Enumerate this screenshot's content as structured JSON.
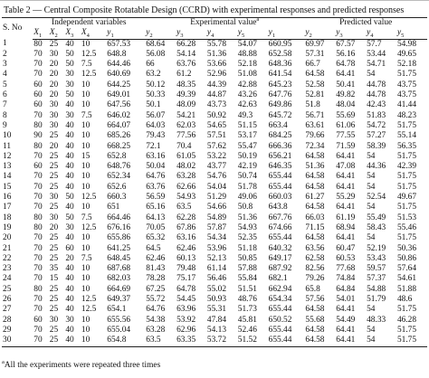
{
  "title": "Table 2 — Central Composite Rotatable Design (CCRD) with experimental responses and predicted responses",
  "header": {
    "sno": "S. No",
    "independent": "Independent variables",
    "experimental": "Experimental value",
    "experimental_mark": "a",
    "predicted": "Predicted value",
    "columns": [
      {
        "base": "X",
        "sub": "1"
      },
      {
        "base": "X",
        "sub": "2"
      },
      {
        "base": "X",
        "sub": "3"
      },
      {
        "base": "X",
        "sub": "4"
      },
      {
        "base": "y",
        "sub": "1"
      },
      {
        "base": "y",
        "sub": "2"
      },
      {
        "base": "y",
        "sub": "3"
      },
      {
        "base": "y",
        "sub": "4"
      },
      {
        "base": "y",
        "sub": "5"
      },
      {
        "base": "y",
        "sub": "1"
      },
      {
        "base": "y",
        "sub": "2"
      },
      {
        "base": "y",
        "sub": "3"
      },
      {
        "base": "y",
        "sub": "4"
      },
      {
        "base": "y",
        "sub": "5"
      }
    ]
  },
  "rows": [
    [
      "1",
      "80",
      "25",
      "40",
      "10",
      "657.53",
      "68.64",
      "66.28",
      "55.78",
      "54.07",
      "660.95",
      "69.97",
      "67.57",
      "57.7",
      "54.98"
    ],
    [
      "2",
      "70",
      "30",
      "50",
      "12.5",
      "648.8",
      "56.08",
      "54.14",
      "51.36",
      "48.88",
      "652.58",
      "57.31",
      "56.16",
      "53.44",
      "49.65"
    ],
    [
      "3",
      "70",
      "20",
      "50",
      "7.5",
      "644.46",
      "66",
      "63.76",
      "53.66",
      "52.18",
      "648.36",
      "66.7",
      "64.78",
      "54.71",
      "52.18"
    ],
    [
      "4",
      "70",
      "20",
      "30",
      "12.5",
      "640.69",
      "63.2",
      "61.2",
      "52.96",
      "51.08",
      "641.54",
      "64.58",
      "64.41",
      "54",
      "51.75"
    ],
    [
      "5",
      "60",
      "20",
      "30",
      "10",
      "644.25",
      "50.12",
      "48.35",
      "44.39",
      "42.88",
      "645.23",
      "52.58",
      "50.41",
      "44.78",
      "43.75"
    ],
    [
      "6",
      "60",
      "20",
      "50",
      "10",
      "649.01",
      "50.33",
      "49.39",
      "44.87",
      "43.26",
      "647.76",
      "52.81",
      "49.82",
      "44.78",
      "43.75"
    ],
    [
      "7",
      "60",
      "30",
      "40",
      "10",
      "647.56",
      "50.1",
      "48.09",
      "43.73",
      "42.63",
      "649.86",
      "51.8",
      "48.04",
      "42.43",
      "41.44"
    ],
    [
      "8",
      "70",
      "30",
      "30",
      "7.5",
      "646.02",
      "56.07",
      "54.21",
      "50.92",
      "49.3",
      "645.72",
      "56.71",
      "55.69",
      "51.83",
      "48.23"
    ],
    [
      "9",
      "80",
      "30",
      "40",
      "10",
      "664.07",
      "64.03",
      "62.03",
      "54.65",
      "51.15",
      "663.4",
      "63.61",
      "61.06",
      "54.72",
      "51.75"
    ],
    [
      "10",
      "90",
      "25",
      "40",
      "10",
      "685.26",
      "79.43",
      "77.56",
      "57.51",
      "53.17",
      "684.25",
      "79.66",
      "77.55",
      "57.27",
      "55.14"
    ],
    [
      "11",
      "80",
      "20",
      "40",
      "10",
      "668.25",
      "72.1",
      "70.4",
      "57.62",
      "55.47",
      "666.36",
      "72.34",
      "71.59",
      "58.39",
      "56.35"
    ],
    [
      "12",
      "70",
      "25",
      "40",
      "15",
      "652.8",
      "63.16",
      "61.05",
      "53.22",
      "50.19",
      "656.21",
      "64.58",
      "64.41",
      "54",
      "51.75"
    ],
    [
      "13",
      "60",
      "25",
      "40",
      "10",
      "648.76",
      "50.04",
      "48.02",
      "43.77",
      "42.19",
      "646.35",
      "51.36",
      "47.08",
      "44.36",
      "42.39"
    ],
    [
      "14",
      "70",
      "25",
      "40",
      "10",
      "652.34",
      "64.76",
      "63.28",
      "54.76",
      "50.74",
      "655.44",
      "64.58",
      "64.41",
      "54",
      "51.75"
    ],
    [
      "15",
      "70",
      "25",
      "40",
      "10",
      "652.6",
      "63.76",
      "62.66",
      "54.04",
      "51.78",
      "655.44",
      "64.58",
      "64.41",
      "54",
      "51.75"
    ],
    [
      "16",
      "70",
      "30",
      "50",
      "12.5",
      "660.3",
      "56.59",
      "54.93",
      "51.29",
      "49.06",
      "660.03",
      "61.27",
      "55.29",
      "52.54",
      "49.67"
    ],
    [
      "17",
      "70",
      "25",
      "40",
      "10",
      "651",
      "65.16",
      "63.5",
      "54.66",
      "50.8",
      "643.8",
      "64.58",
      "64.41",
      "54",
      "51.75"
    ],
    [
      "18",
      "80",
      "30",
      "50",
      "7.5",
      "664.46",
      "64.13",
      "62.28",
      "54.89",
      "51.36",
      "667.76",
      "66.03",
      "61.19",
      "55.49",
      "51.53"
    ],
    [
      "19",
      "80",
      "20",
      "30",
      "12.5",
      "676.16",
      "70.05",
      "67.86",
      "57.87",
      "54.93",
      "674.66",
      "71.15",
      "68.94",
      "58.43",
      "55.46"
    ],
    [
      "20",
      "70",
      "25",
      "40",
      "10",
      "655.86",
      "65.32",
      "63.16",
      "54.34",
      "52.35",
      "655.44",
      "64.58",
      "64.41",
      "54",
      "51.75"
    ],
    [
      "21",
      "70",
      "25",
      "60",
      "10",
      "641.25",
      "64.5",
      "62.46",
      "53.96",
      "51.18",
      "640.32",
      "63.56",
      "60.47",
      "52.19",
      "50.36"
    ],
    [
      "22",
      "70",
      "25",
      "20",
      "7.5",
      "648.45",
      "62.46",
      "60.13",
      "52.13",
      "50.85",
      "649.17",
      "62.58",
      "60.53",
      "53.43",
      "50.86"
    ],
    [
      "23",
      "70",
      "35",
      "40",
      "10",
      "687.68",
      "81.43",
      "79.48",
      "61.14",
      "57.88",
      "687.92",
      "82.56",
      "77.68",
      "59.57",
      "57.64"
    ],
    [
      "24",
      "70",
      "15",
      "40",
      "10",
      "682.03",
      "78.28",
      "75.17",
      "56.46",
      "55.84",
      "682.1",
      "79.26",
      "74.84",
      "57.37",
      "54.61"
    ],
    [
      "25",
      "80",
      "25",
      "40",
      "10",
      "664.69",
      "67.25",
      "64.78",
      "55.02",
      "51.51",
      "662.94",
      "65.8",
      "64.84",
      "54.88",
      "51.88"
    ],
    [
      "26",
      "70",
      "25",
      "40",
      "12.5",
      "649.37",
      "55.72",
      "54.45",
      "50.93",
      "48.76",
      "654.34",
      "57.56",
      "54.01",
      "51.79",
      "48.6"
    ],
    [
      "27",
      "70",
      "25",
      "40",
      "12.5",
      "654.1",
      "64.76",
      "63.96",
      "55.31",
      "51.73",
      "655.44",
      "64.58",
      "64.41",
      "54",
      "51.75"
    ],
    [
      "28",
      "60",
      "30",
      "30",
      "10",
      "655.56",
      "54.38",
      "53.92",
      "47.84",
      "45.81",
      "650.52",
      "55.68",
      "54.49",
      "48.33",
      "46.28"
    ],
    [
      "29",
      "70",
      "25",
      "40",
      "10",
      "655.04",
      "63.28",
      "62.96",
      "54.13",
      "52.46",
      "655.44",
      "64.58",
      "64.41",
      "54",
      "51.75"
    ],
    [
      "30",
      "70",
      "25",
      "40",
      "10",
      "654.8",
      "63.5",
      "63.35",
      "53.72",
      "51.52",
      "655.44",
      "64.58",
      "64.41",
      "54",
      "51.75"
    ]
  ],
  "footnote": {
    "mark": "a",
    "text": "All the experiments were repeated three times"
  }
}
